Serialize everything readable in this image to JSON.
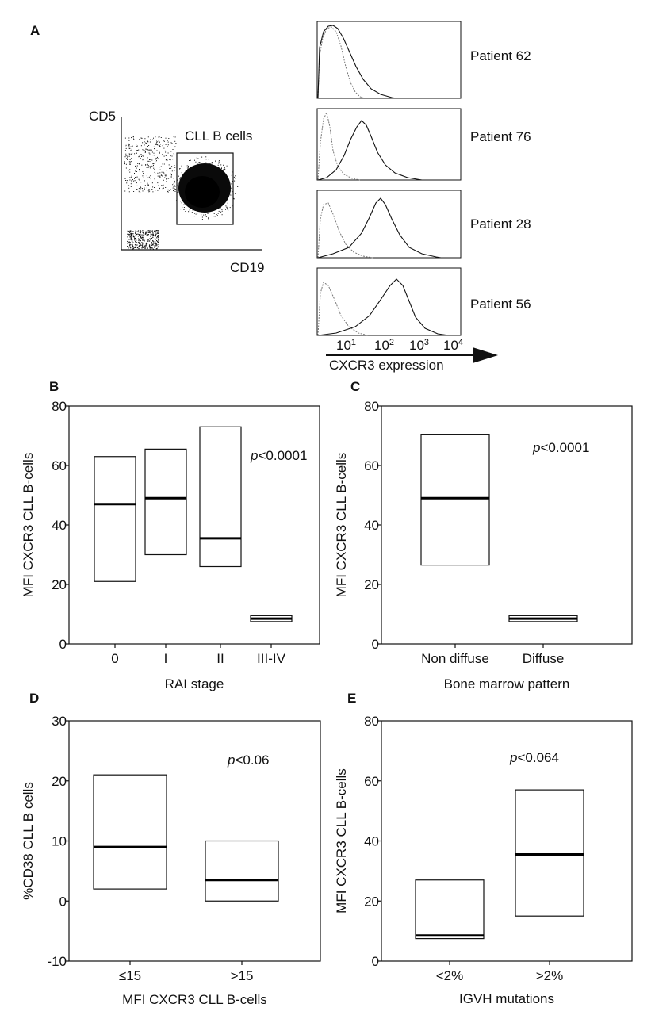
{
  "colors": {
    "panel_letter": "#c0186a",
    "ink": "#111111"
  },
  "panel_a": {
    "letter": "A",
    "scatter": {
      "y_label": "CD5",
      "x_label": "CD19",
      "gate_label": "CLL B cells"
    },
    "histograms": [
      {
        "patient": "Patient 62"
      },
      {
        "patient": "Patient 76"
      },
      {
        "patient": "Patient 28"
      },
      {
        "patient": "Patient 56"
      }
    ],
    "x_ticks": [
      "10",
      "10",
      "10",
      "10"
    ],
    "x_tick_exponents": [
      "1",
      "2",
      "3",
      "4"
    ],
    "axis_label": "CXCR3 expression"
  },
  "chart_data": [
    {
      "id": "B",
      "type": "box",
      "ylabel": "MFI CXCR3 CLL B-cells",
      "xlabel": "RAI stage",
      "ylim": [
        0,
        80
      ],
      "yticks": [
        0,
        20,
        40,
        60,
        80
      ],
      "annotation": "p<0.0001",
      "categories": [
        "0",
        "I",
        "II",
        "III-IV"
      ],
      "boxes": [
        {
          "low": 21,
          "median": 47,
          "high": 63
        },
        {
          "low": 30,
          "median": 49,
          "high": 65.5
        },
        {
          "low": 26,
          "median": 35.5,
          "high": 73
        },
        {
          "low": 7.5,
          "median": 8.5,
          "high": 9.5
        }
      ]
    },
    {
      "id": "C",
      "type": "box",
      "ylabel": "MFI CXCR3 CLL B-cells",
      "xlabel": "Bone marrow pattern",
      "ylim": [
        0,
        80
      ],
      "yticks": [
        0,
        20,
        40,
        60,
        80
      ],
      "annotation": "p<0.0001",
      "categories": [
        "Non diffuse",
        "Diffuse"
      ],
      "boxes": [
        {
          "low": 26.5,
          "median": 49,
          "high": 70.5
        },
        {
          "low": 7.5,
          "median": 8.5,
          "high": 9.5
        }
      ]
    },
    {
      "id": "D",
      "type": "box",
      "ylabel": "%CD38 CLL B cells",
      "xlabel": "MFI CXCR3 CLL B-cells",
      "ylim": [
        -10,
        30
      ],
      "yticks": [
        -10,
        0,
        10,
        20,
        30
      ],
      "annotation": "p<0.06",
      "categories": [
        "≤15",
        ">15"
      ],
      "boxes": [
        {
          "low": 2,
          "median": 9,
          "high": 21
        },
        {
          "low": 0,
          "median": 3.5,
          "high": 10
        }
      ]
    },
    {
      "id": "E",
      "type": "box",
      "ylabel": "MFI CXCR3 CLL B-cells",
      "xlabel": "IGVH mutations",
      "ylim": [
        0,
        80
      ],
      "yticks": [
        0,
        20,
        40,
        60,
        80
      ],
      "annotation": "p<0.064",
      "categories": [
        "<2%",
        ">2%"
      ],
      "boxes": [
        {
          "low": 7.5,
          "median": 8.5,
          "high": 27
        },
        {
          "low": 15,
          "median": 35.5,
          "high": 57
        }
      ]
    }
  ]
}
